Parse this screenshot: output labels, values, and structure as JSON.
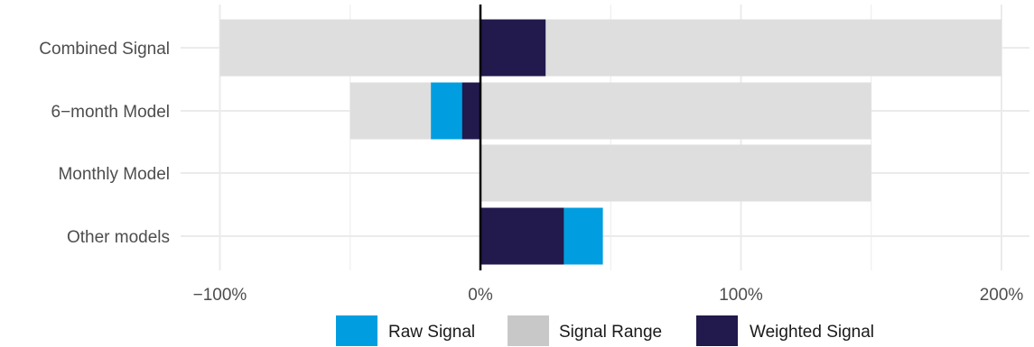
{
  "chart_data": {
    "type": "bar",
    "orientation": "horizontal",
    "categories": [
      "Combined Signal",
      "6−month Model",
      "Monthly Model",
      "Other models"
    ],
    "signal_range": [
      [
        -100,
        200
      ],
      [
        -50,
        150
      ],
      [
        0,
        150
      ],
      [
        0,
        0
      ]
    ],
    "series": [
      {
        "name": "Raw Signal",
        "values": [
          25,
          -19,
          0,
          47
        ]
      },
      {
        "name": "Weighted Signal",
        "values": [
          25,
          -7,
          0,
          32
        ]
      }
    ],
    "range_series_name": "Signal Range",
    "x_ticks": [
      -100,
      0,
      100,
      200
    ],
    "x_tick_labels": [
      "−100%",
      "0%",
      "100%",
      "200%"
    ],
    "xlim": [
      -112,
      210
    ],
    "grid": true,
    "legend_position": "bottom",
    "title": "",
    "xlabel": "",
    "ylabel": ""
  },
  "colors": {
    "raw_signal": "#009ee0",
    "signal_range": "#dedede",
    "weighted_signal": "#22194d",
    "grid": "#ebebeb",
    "zero_line": "#000000"
  },
  "legend": {
    "items": [
      {
        "label": "Raw Signal",
        "color": "#009ee0"
      },
      {
        "label": "Signal Range",
        "color": "#c8c8c8"
      },
      {
        "label": "Weighted Signal",
        "color": "#22194d"
      }
    ]
  }
}
